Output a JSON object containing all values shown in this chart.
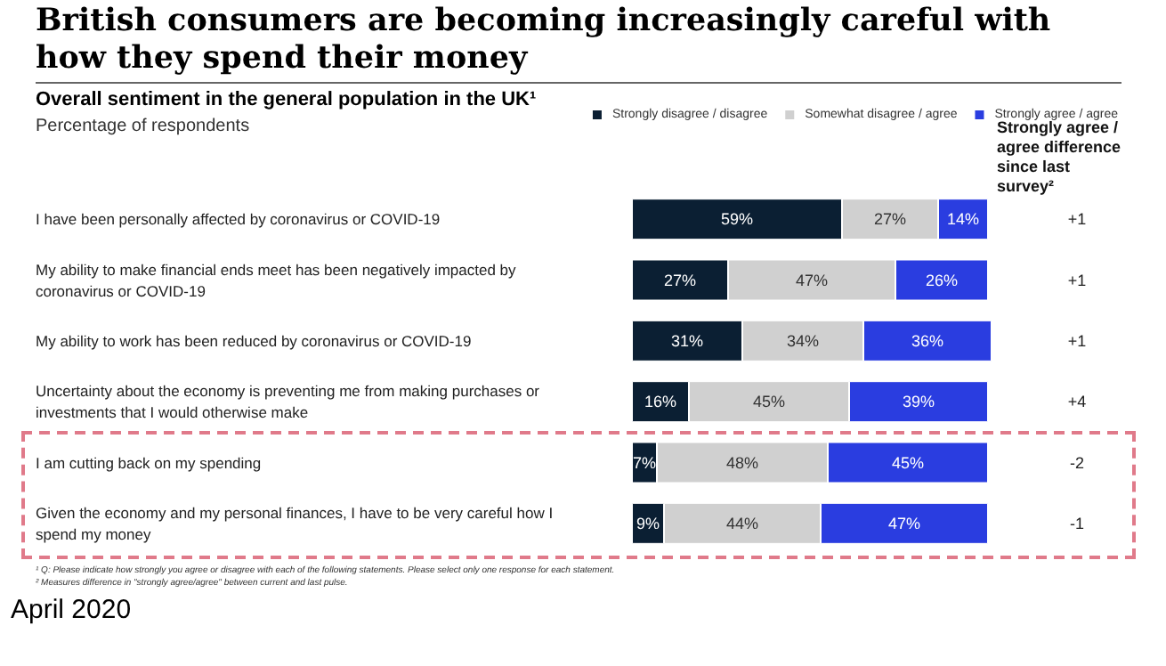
{
  "chart_data": {
    "type": "bar",
    "orientation": "horizontal",
    "stacked": true,
    "title": "British consumers are becoming increasingly careful with how they spend their money",
    "subtitle": "Overall sentiment in the general population in the UK¹",
    "categories": [
      "I have been personally affected by coronavirus or COVID-19",
      "My ability to make financial ends meet has been negatively impacted by coronavirus or COVID-19",
      "My ability to work has been reduced by coronavirus or COVID-19",
      "Uncertainty about the economy is preventing me from making purchases or investments that I would otherwise make",
      "I am cutting back on my spending",
      "Given the economy and my personal finances, I have to be very careful how I spend my money"
    ],
    "series": [
      {
        "name": "Strongly disagree / disagree",
        "color": "#0b1f33",
        "values": [
          59,
          27,
          31,
          16,
          7,
          9
        ],
        "value_labels": [
          "59%",
          "27%",
          "31%",
          "16%",
          "7%",
          "9%"
        ]
      },
      {
        "name": "Somewhat disagree / agree",
        "color": "#d0d0d0",
        "values": [
          27,
          47,
          34,
          45,
          48,
          44
        ],
        "value_labels": [
          "27%",
          "47%",
          "34%",
          "45%",
          "48%",
          "44%"
        ]
      },
      {
        "name": "Strongly agree / agree",
        "color": "#2a3de0",
        "values": [
          14,
          26,
          36,
          39,
          45,
          47
        ],
        "value_labels": [
          "14%",
          "26%",
          "36%",
          "39%",
          "45%",
          "47%"
        ]
      }
    ],
    "xlim": [
      0,
      101
    ],
    "tick_labels": "y",
    "grid": false,
    "legend": "top right",
    "annotations": [
      "Percentage of respondents",
      "Strongly agree / agree difference since last survey²",
      "+1",
      "+1",
      "+1",
      "+4",
      "-2",
      "-1",
      "¹ Q: Please indicate how strongly you agree or disagree with each of the following statements. Please select only one response for each statement.",
      "² Measures difference in \"strongly agree/agree\" between current and last pulse.",
      "April 2020"
    ]
  }
}
